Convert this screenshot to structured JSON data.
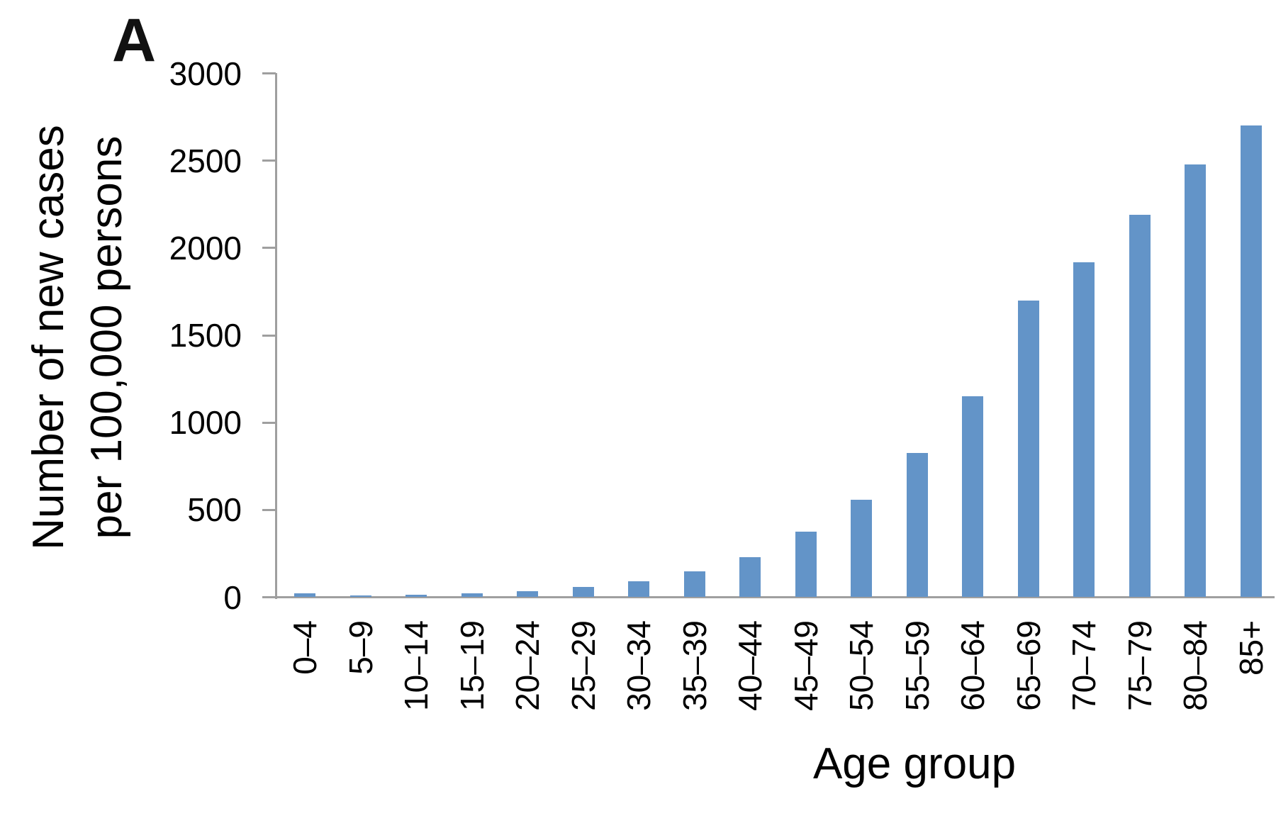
{
  "panel_label": "A",
  "colors": {
    "bar": "#6394c8",
    "axis": "#9f9f9f",
    "text": "#000000",
    "background": "#ffffff"
  },
  "chart_data": {
    "type": "bar",
    "title": "",
    "xlabel": "Age group",
    "ylabel": "Number of new cases per 100,000 persons",
    "ylabel_lines": [
      "Number of new cases",
      "per 100,000 persons"
    ],
    "categories": [
      "0–4",
      "5–9",
      "10–14",
      "15–19",
      "20–24",
      "25–29",
      "30–34",
      "35–39",
      "40–44",
      "45–49",
      "50–54",
      "55–59",
      "60–64",
      "65–69",
      "70–74",
      "75–79",
      "80–84",
      "85+"
    ],
    "values": [
      22,
      12,
      13,
      22,
      33,
      57,
      90,
      150,
      230,
      376,
      560,
      825,
      1150,
      1700,
      1920,
      2190,
      2480,
      2700
    ],
    "ylim": [
      0,
      3000
    ],
    "yticks": [
      0,
      500,
      1000,
      1500,
      2000,
      2500,
      3000
    ],
    "grid": false,
    "legend_position": "none",
    "bar_orientation": "vertical"
  }
}
